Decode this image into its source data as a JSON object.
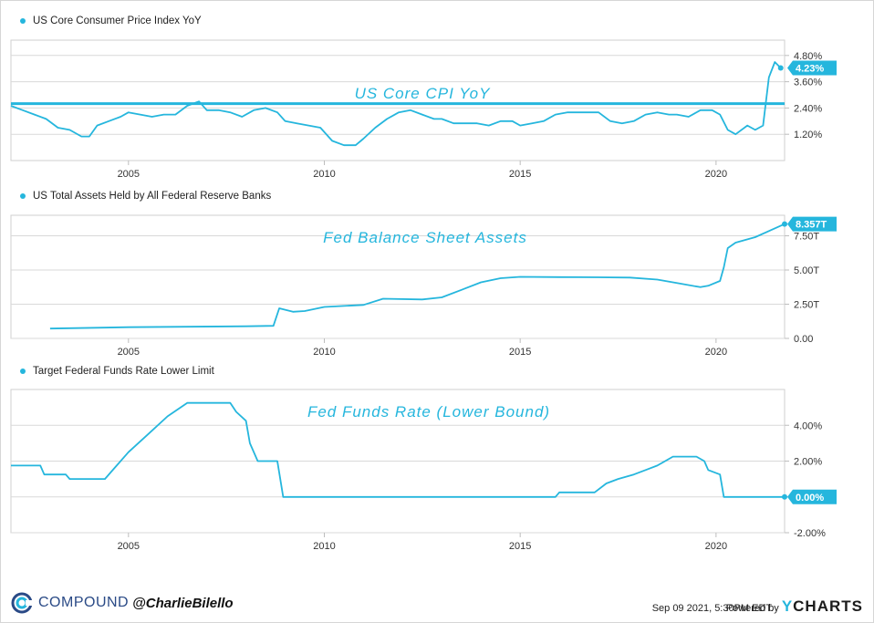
{
  "colors": {
    "line": "#25b6dd",
    "annotation": "#25b6dd",
    "grid": "#d9d9d9",
    "brand": "#2a4a86"
  },
  "chart_data": [
    {
      "type": "line",
      "legend": "US Core Consumer Price Index YoY",
      "annotation": "US Core CPI YoY",
      "last_value_label": "4.23%",
      "x_ticks": [
        "2005",
        "2010",
        "2015",
        "2020"
      ],
      "y_ticks": [
        "1.20%",
        "2.40%",
        "3.60%",
        "4.80%"
      ],
      "ylim": [
        0.0,
        5.5
      ],
      "xlim": [
        2002.0,
        2021.75
      ],
      "reference_line": 2.6,
      "x": [
        2002.0,
        2002.3,
        2002.6,
        2002.9,
        2003.2,
        2003.5,
        2003.8,
        2004.0,
        2004.2,
        2004.5,
        2004.8,
        2005.0,
        2005.3,
        2005.6,
        2005.9,
        2006.2,
        2006.5,
        2006.8,
        2007.0,
        2007.3,
        2007.6,
        2007.9,
        2008.2,
        2008.5,
        2008.8,
        2009.0,
        2009.3,
        2009.6,
        2009.9,
        2010.2,
        2010.5,
        2010.8,
        2011.0,
        2011.3,
        2011.6,
        2011.9,
        2012.2,
        2012.5,
        2012.8,
        2013.0,
        2013.3,
        2013.6,
        2013.9,
        2014.2,
        2014.5,
        2014.8,
        2015.0,
        2015.3,
        2015.6,
        2015.9,
        2016.2,
        2016.5,
        2016.8,
        2017.0,
        2017.3,
        2017.6,
        2017.9,
        2018.2,
        2018.5,
        2018.8,
        2019.0,
        2019.3,
        2019.6,
        2019.9,
        2020.1,
        2020.3,
        2020.5,
        2020.8,
        2021.0,
        2021.2,
        2021.35,
        2021.5,
        2021.65
      ],
      "y": [
        2.5,
        2.3,
        2.1,
        1.9,
        1.5,
        1.4,
        1.1,
        1.1,
        1.6,
        1.8,
        2.0,
        2.2,
        2.1,
        2.0,
        2.1,
        2.1,
        2.5,
        2.7,
        2.3,
        2.3,
        2.2,
        2.0,
        2.3,
        2.4,
        2.2,
        1.8,
        1.7,
        1.6,
        1.5,
        0.9,
        0.7,
        0.7,
        1.0,
        1.5,
        1.9,
        2.2,
        2.3,
        2.1,
        1.9,
        1.9,
        1.7,
        1.7,
        1.7,
        1.6,
        1.8,
        1.8,
        1.6,
        1.7,
        1.8,
        2.1,
        2.2,
        2.2,
        2.2,
        2.2,
        1.8,
        1.7,
        1.8,
        2.1,
        2.2,
        2.1,
        2.1,
        2.0,
        2.3,
        2.3,
        2.1,
        1.4,
        1.2,
        1.6,
        1.4,
        1.6,
        3.8,
        4.5,
        4.23
      ]
    },
    {
      "type": "line",
      "legend": "US Total Assets Held by All Federal Reserve Banks",
      "annotation": "Fed Balance Sheet Assets",
      "last_value_label": "8.357T",
      "x_ticks": [
        "2005",
        "2010",
        "2015",
        "2020"
      ],
      "y_ticks": [
        "0.00",
        "2.50T",
        "5.00T",
        "7.50T"
      ],
      "ylim": [
        0.0,
        9.0
      ],
      "xlim": [
        2002.0,
        2021.75
      ],
      "x": [
        2003.0,
        2005.0,
        2008.0,
        2008.7,
        2008.85,
        2009.2,
        2009.5,
        2010.0,
        2011.0,
        2011.5,
        2012.5,
        2013.0,
        2013.5,
        2014.0,
        2014.5,
        2015.0,
        2016.0,
        2017.0,
        2017.8,
        2018.5,
        2019.0,
        2019.6,
        2019.8,
        2020.1,
        2020.2,
        2020.3,
        2020.5,
        2021.0,
        2021.75
      ],
      "y": [
        0.72,
        0.82,
        0.89,
        0.92,
        2.2,
        1.95,
        2.0,
        2.3,
        2.45,
        2.9,
        2.85,
        3.0,
        3.55,
        4.1,
        4.4,
        4.5,
        4.48,
        4.47,
        4.45,
        4.3,
        4.05,
        3.75,
        3.85,
        4.2,
        5.2,
        6.6,
        7.0,
        7.4,
        8.357
      ]
    },
    {
      "type": "line",
      "legend": "Target Federal Funds Rate Lower Limit",
      "annotation": "Fed Funds Rate (Lower Bound)",
      "last_value_label": "0.00%",
      "x_ticks": [
        "2005",
        "2010",
        "2015",
        "2020"
      ],
      "y_ticks": [
        "-2.00%",
        "0.00%",
        "2.00%",
        "4.00%"
      ],
      "ylim": [
        -2.0,
        6.0
      ],
      "xlim": [
        2002.0,
        2021.75
      ],
      "x": [
        2002.0,
        2002.75,
        2002.85,
        2003.4,
        2003.5,
        2004.4,
        2004.7,
        2005.0,
        2005.5,
        2006.0,
        2006.5,
        2007.6,
        2007.75,
        2008.0,
        2008.1,
        2008.3,
        2008.6,
        2008.8,
        2008.95,
        2015.9,
        2016.0,
        2016.9,
        2017.2,
        2017.5,
        2017.9,
        2018.2,
        2018.5,
        2018.9,
        2019.0,
        2019.5,
        2019.7,
        2019.8,
        2020.1,
        2020.2,
        2021.75
      ],
      "y": [
        1.75,
        1.75,
        1.25,
        1.25,
        1.0,
        1.0,
        1.75,
        2.5,
        3.5,
        4.5,
        5.25,
        5.25,
        4.75,
        4.25,
        3.0,
        2.0,
        2.0,
        2.0,
        0.0,
        0.0,
        0.25,
        0.25,
        0.75,
        1.0,
        1.25,
        1.5,
        1.75,
        2.25,
        2.25,
        2.25,
        2.0,
        1.5,
        1.25,
        0.0,
        0.0
      ]
    }
  ],
  "footer": {
    "brand_name": "COMPOUND",
    "brand_handle": "@CharlieBilello",
    "timestamp": "Sep 09 2021, 5:30PM EDT.",
    "powered_by": "Powered by",
    "ycharts_y": "Y",
    "ycharts_rest": "CHARTS"
  }
}
